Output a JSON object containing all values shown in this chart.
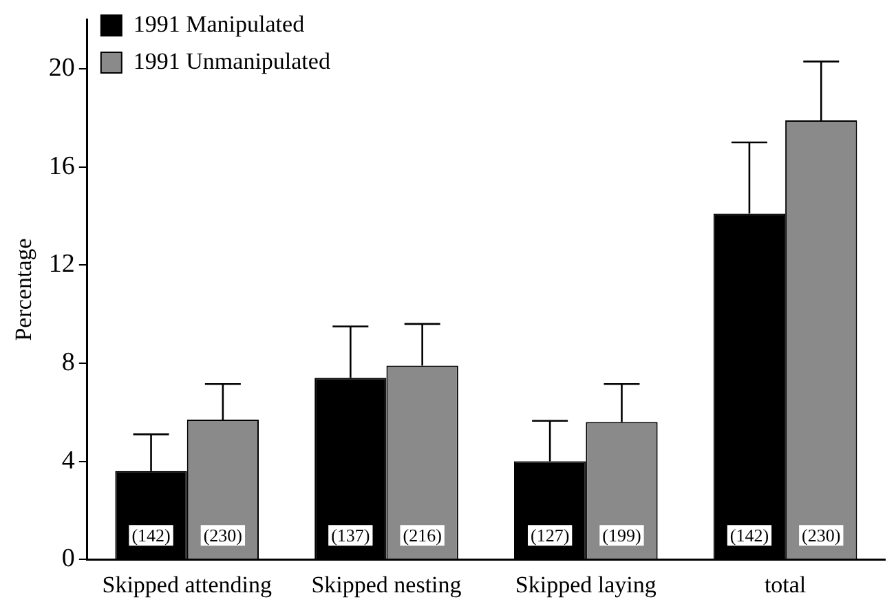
{
  "chart_data": {
    "type": "bar",
    "ylabel": "Percentage",
    "categories": [
      "Skipped attending",
      "Skipped nesting",
      "Skipped laying",
      "total"
    ],
    "series": [
      {
        "name": "1991 Manipulated",
        "color": "#000000",
        "values": [
          3.6,
          7.4,
          4.0,
          14.1
        ],
        "errors": [
          [
            3.6,
            5.1
          ],
          [
            7.4,
            9.5
          ],
          [
            4.0,
            5.65
          ],
          [
            14.1,
            17.0
          ]
        ]
      },
      {
        "name": "1991 Unmanipulated",
        "color": "#8a8a8a",
        "values": [
          5.7,
          7.9,
          5.6,
          17.9
        ],
        "errors": [
          [
            5.7,
            7.15
          ],
          [
            7.9,
            9.6
          ],
          [
            5.6,
            7.15
          ],
          [
            17.9,
            20.3
          ]
        ]
      }
    ],
    "ylim": [
      0,
      22
    ],
    "yticks": [
      0,
      4,
      8,
      12,
      16,
      20
    ],
    "grid": false,
    "legend": "top left",
    "annotations": [
      {
        "text": "(142)",
        "x": "Skipped attending",
        "y": 0.5
      },
      {
        "text": "(230)",
        "x": "Skipped attending",
        "y": 0.5
      },
      {
        "text": "(137)",
        "x": "Skipped nesting",
        "y": 0.5
      },
      {
        "text": "(216)",
        "x": "Skipped nesting",
        "y": 0.5
      },
      {
        "text": "(127)",
        "x": "Skipped laying",
        "y": 0.5
      },
      {
        "text": "(199)",
        "x": "Skipped laying",
        "y": 0.5
      },
      {
        "text": "(142)",
        "x": "total",
        "y": 0.5
      },
      {
        "text": "(230)",
        "x": "total",
        "y": 0.5
      }
    ]
  }
}
